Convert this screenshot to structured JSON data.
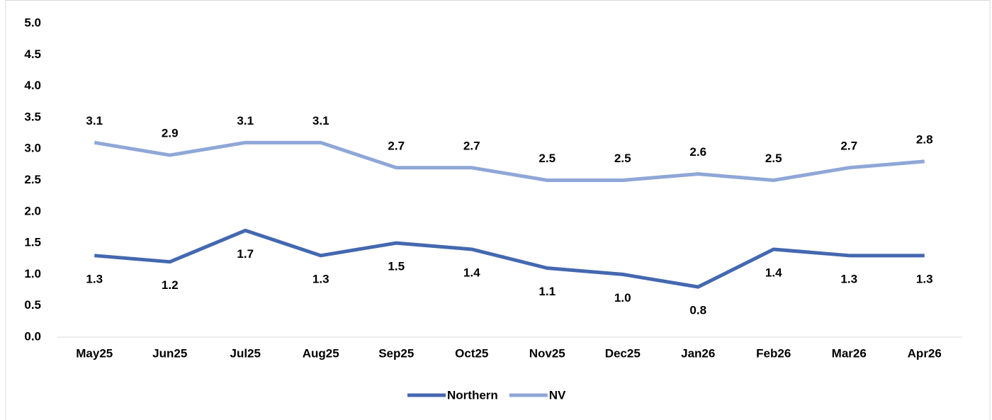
{
  "chart_data": {
    "type": "line",
    "categories": [
      "May25",
      "Jun25",
      "Jul25",
      "Aug25",
      "Sep25",
      "Oct25",
      "Nov25",
      "Dec25",
      "Jan26",
      "Feb26",
      "Mar26",
      "Apr26"
    ],
    "series": [
      {
        "name": "Northern",
        "color": "#4468b0",
        "values": [
          1.3,
          1.2,
          1.7,
          1.3,
          1.5,
          1.4,
          1.1,
          1.0,
          0.8,
          1.4,
          1.3,
          1.3
        ],
        "value_labels": [
          "1.3",
          "1.2",
          "1.7",
          "1.3",
          "1.5",
          "1.4",
          "1.1",
          "1.0",
          "0.8",
          "1.4",
          "1.3",
          "1.3"
        ]
      },
      {
        "name": "NV",
        "color": "#8fa7d7",
        "values": [
          3.1,
          2.9,
          3.1,
          3.1,
          2.7,
          2.7,
          2.5,
          2.5,
          2.6,
          2.5,
          2.7,
          2.8
        ],
        "value_labels": [
          "3.1",
          "2.9",
          "3.1",
          "3.1",
          "2.7",
          "2.7",
          "2.5",
          "2.5",
          "2.6",
          "2.5",
          "2.7",
          "2.8"
        ]
      }
    ],
    "ylim": [
      0,
      5
    ],
    "yticks": [
      {
        "value": 0,
        "label": "0.0"
      },
      0.5,
      {
        "value": 1,
        "label": "1.0"
      },
      1.5,
      {
        "value": 2,
        "label": "2.0"
      },
      2.5,
      {
        "value": 3,
        "label": "3.0"
      },
      3.5,
      {
        "value": 4,
        "label": "4.0"
      },
      4.5,
      {
        "value": 5,
        "label": "5.0"
      }
    ],
    "grid": false,
    "legend": "bottom"
  }
}
